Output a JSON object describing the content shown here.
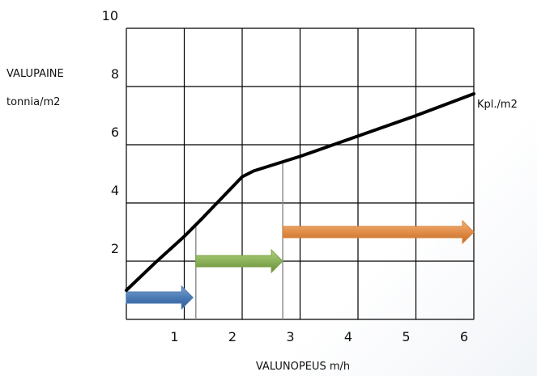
{
  "chart_data": {
    "type": "line",
    "ylabel_line1": "VALUPAINE",
    "ylabel_line2": "tonnia/m2",
    "xlabel": "VALUNOPEUS m/h",
    "series_label": "Kpl./m2",
    "xlim": [
      0,
      6
    ],
    "ylim": [
      0,
      10
    ],
    "x_ticks": [
      "1",
      "2",
      "3",
      "4",
      "5",
      "6"
    ],
    "y_ticks": [
      "2",
      "4",
      "6",
      "8",
      "10"
    ],
    "grid": true,
    "series": [
      {
        "x": [
          0,
          0.5,
          1.0,
          1.3,
          2.0,
          2.2,
          3.0,
          4.0,
          5.0,
          6.0
        ],
        "y": [
          1.0,
          1.95,
          2.85,
          3.45,
          4.9,
          5.1,
          5.6,
          6.3,
          7.0,
          7.75
        ],
        "color": "#000000"
      }
    ],
    "ranges": [
      {
        "x_start": 0.0,
        "x_end": 1.15,
        "y": 0.75,
        "color": "#4a7ab4",
        "boundary_x": 1.2
      },
      {
        "x_start": 1.2,
        "x_end": 2.7,
        "y": 2.0,
        "color": "#7ea548",
        "boundary_x": 2.7
      },
      {
        "x_start": 2.7,
        "x_end": 6.0,
        "y": 3.0,
        "color": "#d98339",
        "boundary_x": null
      }
    ],
    "colors": {
      "grid": "#000000",
      "curve": "#000000"
    }
  }
}
